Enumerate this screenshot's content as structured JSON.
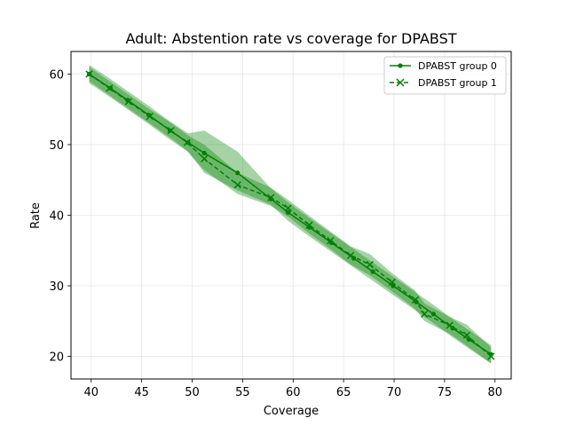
{
  "chart_data": {
    "type": "line",
    "title": "Adult: Abstention rate vs coverage for DPABST",
    "xlabel": "Coverage",
    "ylabel": "Rate",
    "xlim": [
      38,
      81.6
    ],
    "ylim": [
      16.8,
      63.2
    ],
    "xticks": [
      40,
      45,
      50,
      55,
      60,
      65,
      70,
      75,
      80
    ],
    "yticks": [
      20,
      30,
      40,
      50,
      60
    ],
    "grid": true,
    "legend_position": "top-right",
    "color": "#008000",
    "series": [
      {
        "name": "DPABST group 0",
        "linestyle": "solid",
        "marker": "dot",
        "x": [
          39.8,
          41.9,
          43.6,
          45.7,
          47.8,
          49.6,
          51.2,
          54.5,
          57.8,
          59.5,
          61.6,
          63.8,
          66.0,
          67.9,
          69.9,
          72.2,
          73.9,
          75.8,
          77.4,
          79.6
        ],
        "y": [
          60.0,
          58.0,
          56.3,
          54.2,
          52.0,
          50.3,
          48.8,
          46.0,
          42.3,
          40.4,
          38.3,
          36.1,
          33.9,
          32.0,
          30.0,
          27.7,
          26.0,
          24.0,
          22.4,
          20.3
        ],
        "band_upper": [
          61.3,
          59.3,
          57.6,
          55.5,
          53.3,
          51.6,
          52.0,
          49.0,
          43.8,
          41.8,
          39.6,
          37.4,
          35.2,
          33.3,
          31.3,
          29.0,
          27.3,
          25.3,
          23.7,
          21.6
        ],
        "band_lower": [
          58.7,
          56.7,
          55.0,
          52.9,
          50.7,
          49.0,
          46.0,
          43.5,
          41.5,
          39.2,
          37.0,
          34.8,
          32.6,
          30.7,
          28.7,
          26.4,
          24.7,
          22.7,
          21.1,
          19.0
        ]
      },
      {
        "name": "DPABST group 1",
        "linestyle": "dashed",
        "marker": "x",
        "x": [
          39.8,
          41.8,
          43.7,
          45.8,
          47.9,
          49.5,
          51.2,
          54.5,
          57.8,
          59.5,
          61.6,
          63.7,
          65.7,
          67.6,
          69.8,
          72.1,
          73.0,
          75.5,
          77.2,
          79.6
        ],
        "y": [
          60.0,
          58.0,
          56.1,
          54.0,
          52.0,
          50.3,
          48.0,
          44.3,
          42.5,
          41.0,
          38.6,
          36.4,
          34.3,
          33.0,
          30.5,
          28.0,
          26.0,
          24.4,
          23.0,
          20.0
        ],
        "band_upper": [
          61.0,
          59.0,
          57.1,
          55.0,
          53.1,
          51.4,
          50.0,
          46.0,
          43.9,
          42.2,
          39.9,
          37.7,
          35.6,
          34.5,
          31.8,
          29.3,
          27.5,
          25.6,
          24.5,
          21.3
        ],
        "band_lower": [
          59.0,
          57.0,
          55.1,
          53.0,
          50.9,
          49.1,
          46.4,
          43.0,
          41.3,
          39.8,
          37.4,
          35.2,
          33.0,
          31.5,
          29.2,
          26.7,
          25.0,
          23.2,
          21.5,
          19.0
        ]
      }
    ]
  }
}
